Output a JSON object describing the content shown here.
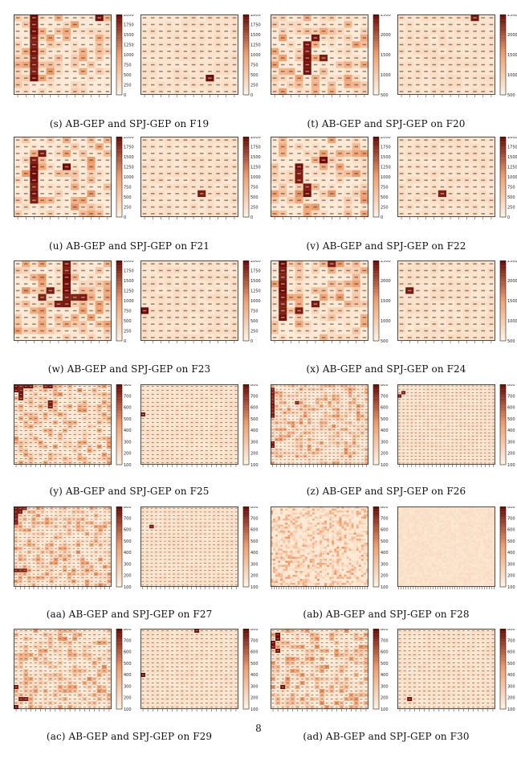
{
  "page_number": "8",
  "colors": {
    "low": "#fdf1e0",
    "mid": "#f0a070",
    "high": "#6e0c08"
  },
  "panels": [
    {
      "caption": "(s) AB-GEP and SPJ-GEP on F19",
      "n": 12,
      "peak": 2000,
      "colorbar_ticks": [
        "2000",
        "1750",
        "1500",
        "1250",
        "1000",
        "750",
        "500",
        "250",
        "0"
      ],
      "left_hot": [
        [
          0,
          2
        ],
        [
          1,
          2
        ],
        [
          2,
          2
        ],
        [
          3,
          2
        ],
        [
          4,
          2
        ],
        [
          5,
          2
        ],
        [
          6,
          2
        ],
        [
          7,
          2
        ],
        [
          8,
          2
        ],
        [
          9,
          2
        ],
        [
          0,
          10
        ]
      ],
      "right_hot": [
        [
          9,
          8
        ]
      ]
    },
    {
      "caption": "(t) AB-GEP and SPJ-GEP on F20",
      "n": 12,
      "peak": 2500,
      "colorbar_ticks": [
        "2500",
        "2000",
        "1500",
        "1000",
        "500"
      ],
      "left_hot": [
        [
          4,
          4
        ],
        [
          5,
          4
        ],
        [
          6,
          4
        ],
        [
          7,
          4
        ],
        [
          8,
          4
        ],
        [
          3,
          5
        ],
        [
          6,
          6
        ]
      ],
      "right_hot": [
        [
          0,
          9
        ]
      ]
    },
    {
      "caption": "(u) AB-GEP and SPJ-GEP on F21",
      "n": 12,
      "peak": 2000,
      "colorbar_ticks": [
        "2000",
        "1750",
        "1500",
        "1250",
        "1000",
        "750",
        "500",
        "250",
        "0"
      ],
      "left_hot": [
        [
          3,
          2
        ],
        [
          4,
          2
        ],
        [
          5,
          2
        ],
        [
          6,
          2
        ],
        [
          7,
          2
        ],
        [
          8,
          2
        ],
        [
          9,
          2
        ],
        [
          4,
          6
        ],
        [
          2,
          3
        ]
      ],
      "right_hot": [
        [
          8,
          7
        ]
      ]
    },
    {
      "caption": "(v) AB-GEP and SPJ-GEP on F22",
      "n": 12,
      "peak": 2000,
      "colorbar_ticks": [
        "2000",
        "1750",
        "1500",
        "1250",
        "1000",
        "750",
        "500",
        "250",
        "0"
      ],
      "left_hot": [
        [
          4,
          3
        ],
        [
          5,
          3
        ],
        [
          6,
          3
        ],
        [
          7,
          4
        ],
        [
          8,
          4
        ],
        [
          3,
          6
        ]
      ],
      "right_hot": [
        [
          8,
          5
        ]
      ]
    },
    {
      "caption": "(w) AB-GEP and SPJ-GEP on F23",
      "n": 12,
      "peak": 2000,
      "colorbar_ticks": [
        "2000",
        "1750",
        "1500",
        "1250",
        "1000",
        "750",
        "500",
        "250",
        "0"
      ],
      "left_hot": [
        [
          0,
          6
        ],
        [
          1,
          6
        ],
        [
          2,
          6
        ],
        [
          3,
          6
        ],
        [
          4,
          6
        ],
        [
          5,
          6
        ],
        [
          6,
          6
        ],
        [
          5,
          3
        ],
        [
          4,
          4
        ],
        [
          6,
          5
        ],
        [
          5,
          7
        ],
        [
          5,
          8
        ]
      ],
      "right_hot": [
        [
          7,
          0
        ]
      ]
    },
    {
      "caption": "(x) AB-GEP and SPJ-GEP on F24",
      "n": 12,
      "peak": 2500,
      "colorbar_ticks": [
        "2500",
        "2000",
        "1500",
        "1000",
        "500"
      ],
      "left_hot": [
        [
          0,
          1
        ],
        [
          1,
          1
        ],
        [
          2,
          1
        ],
        [
          3,
          1
        ],
        [
          4,
          1
        ],
        [
          5,
          1
        ],
        [
          6,
          1
        ],
        [
          7,
          1
        ],
        [
          8,
          1
        ],
        [
          0,
          7
        ],
        [
          7,
          3
        ],
        [
          6,
          5
        ]
      ],
      "right_hot": [
        [
          4,
          1
        ]
      ]
    },
    {
      "caption": "(y) AB-GEP and SPJ-GEP on F25",
      "n": 20,
      "peak": 800,
      "colorbar_ticks": [
        "800",
        "700",
        "600",
        "500",
        "400",
        "300",
        "200",
        "100"
      ],
      "left_hot": [
        [
          0,
          0
        ],
        [
          1,
          0
        ],
        [
          0,
          1
        ],
        [
          0,
          2
        ],
        [
          0,
          3
        ],
        [
          1,
          1
        ],
        [
          2,
          1
        ],
        [
          3,
          1
        ],
        [
          0,
          6
        ],
        [
          0,
          7
        ],
        [
          4,
          7
        ],
        [
          5,
          7
        ]
      ],
      "right_hot": [
        [
          7,
          0
        ]
      ]
    },
    {
      "caption": "(z) AB-GEP and SPJ-GEP on F26",
      "n": 24,
      "peak": 800,
      "colorbar_ticks": [
        "800",
        "700",
        "600",
        "500",
        "400",
        "300",
        "200",
        "100"
      ],
      "left_hot": [
        [
          1,
          0
        ],
        [
          2,
          0
        ],
        [
          3,
          0
        ],
        [
          4,
          0
        ],
        [
          5,
          0
        ],
        [
          6,
          0
        ],
        [
          7,
          0
        ],
        [
          8,
          0
        ],
        [
          9,
          0
        ],
        [
          17,
          0
        ],
        [
          18,
          0
        ],
        [
          5,
          6
        ]
      ],
      "right_hot": [
        [
          2,
          1
        ],
        [
          3,
          0
        ]
      ]
    },
    {
      "caption": "(aa) AB-GEP and SPJ-GEP on F27",
      "n": 22,
      "peak": 800,
      "colorbar_ticks": [
        "800",
        "700",
        "600",
        "500",
        "400",
        "300",
        "200",
        "100"
      ],
      "left_hot": [
        [
          0,
          0
        ],
        [
          0,
          1
        ],
        [
          0,
          2
        ],
        [
          1,
          0
        ],
        [
          1,
          1
        ],
        [
          2,
          0
        ],
        [
          3,
          0
        ],
        [
          4,
          0
        ],
        [
          17,
          0
        ],
        [
          17,
          1
        ],
        [
          17,
          2
        ]
      ],
      "right_hot": [
        [
          5,
          2
        ]
      ]
    },
    {
      "caption": "(ab) AB-GEP and SPJ-GEP on F28",
      "n": 40,
      "peak": 800,
      "colorbar_ticks": [
        "800",
        "700",
        "600",
        "500",
        "400",
        "300",
        "200",
        "100"
      ],
      "left_hot": [],
      "right_hot": []
    },
    {
      "caption": "(ac) AB-GEP and SPJ-GEP on F29",
      "n": 20,
      "peak": 800,
      "colorbar_ticks": [
        "800",
        "700",
        "600",
        "500",
        "400",
        "300",
        "200",
        "100"
      ],
      "left_hot": [
        [
          17,
          1
        ],
        [
          17,
          2
        ],
        [
          19,
          0
        ],
        [
          14,
          0
        ]
      ],
      "right_hot": [
        [
          0,
          11
        ],
        [
          11,
          0
        ]
      ]
    },
    {
      "caption": "(ad) AB-GEP and SPJ-GEP on F30",
      "n": 20,
      "peak": 800,
      "colorbar_ticks": [
        "800",
        "700",
        "600",
        "500",
        "400",
        "300",
        "200",
        "100"
      ],
      "left_hot": [
        [
          1,
          1
        ],
        [
          2,
          1
        ],
        [
          3,
          0
        ],
        [
          4,
          0
        ],
        [
          5,
          1
        ],
        [
          14,
          2
        ]
      ],
      "right_hot": [
        [
          17,
          2
        ]
      ]
    }
  ]
}
